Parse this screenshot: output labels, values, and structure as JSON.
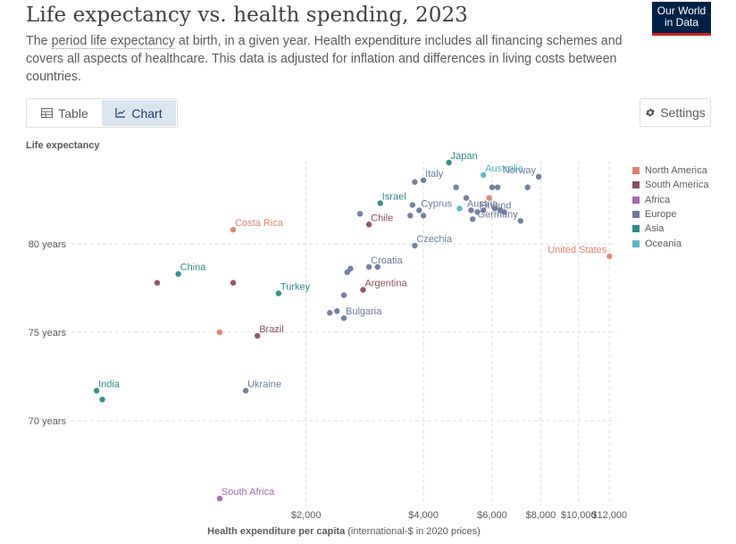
{
  "header": {
    "title": "Life expectancy vs. health spending, 2023",
    "subtitle_pre": "The ",
    "subtitle_link": "period life expectancy",
    "subtitle_post": " at birth, in a given year. Health expenditure includes all financing schemes and covers all aspects of healthcare. This data is adjusted for inflation and differences in living costs between countries.",
    "logo_line1": "Our World",
    "logo_line2": "in Data"
  },
  "toolbar": {
    "table_label": "Table",
    "chart_label": "Chart",
    "settings_label": "Settings"
  },
  "colors": {
    "accent": "#dbe5f0",
    "logo_bg": "#002147",
    "logo_rule": "#ce261e"
  },
  "chart_data": {
    "type": "scatter",
    "title": "Life expectancy vs. health spending, 2023",
    "ylabel": "Life expectancy",
    "xlabel_bold": "Health expenditure per capita",
    "xlabel_rest": " (international-$ in 2020 prices)",
    "x_scale": "log",
    "xlim": [
      500,
      12500
    ],
    "ylim": [
      65.2,
      84.7
    ],
    "x_ticks": [
      {
        "value": 2000,
        "label": "$2,000"
      },
      {
        "value": 4000,
        "label": "$4,000"
      },
      {
        "value": 6000,
        "label": "$6,000"
      },
      {
        "value": 8000,
        "label": "$8,000"
      },
      {
        "value": 10000,
        "label": "$10,000"
      },
      {
        "value": 12000,
        "label": "$12,000"
      }
    ],
    "y_ticks": [
      {
        "value": 70,
        "label": "70 years"
      },
      {
        "value": 75,
        "label": "75 years"
      },
      {
        "value": 80,
        "label": "80 years"
      }
    ],
    "grid": true,
    "legend_position": "right",
    "series": [
      {
        "name": "North America",
        "color": "#e0816e"
      },
      {
        "name": "South America",
        "color": "#8c4f5b"
      },
      {
        "name": "Africa",
        "color": "#a46ab0"
      },
      {
        "name": "Europe",
        "color": "#6b7a9c"
      },
      {
        "name": "Asia",
        "color": "#2d8a87"
      },
      {
        "name": "Oceania",
        "color": "#59b6c4"
      }
    ],
    "points": [
      {
        "country": "United States",
        "region": "North America",
        "x": 12000,
        "y": 79.3,
        "label": "United States"
      },
      {
        "country": "Costa Rica",
        "region": "North America",
        "x": 1300,
        "y": 80.8,
        "label": "Costa Rica"
      },
      {
        "country": "",
        "region": "North America",
        "x": 5900,
        "y": 82.6,
        "label": ""
      },
      {
        "country": "",
        "region": "North America",
        "x": 1200,
        "y": 75.0,
        "label": ""
      },
      {
        "country": "Chile",
        "region": "South America",
        "x": 2900,
        "y": 81.1,
        "label": "Chile"
      },
      {
        "country": "Argentina",
        "region": "South America",
        "x": 2800,
        "y": 77.4,
        "label": "Argentina"
      },
      {
        "country": "Brazil",
        "region": "South America",
        "x": 1500,
        "y": 74.8,
        "label": "Brazil"
      },
      {
        "country": "",
        "region": "South America",
        "x": 1300,
        "y": 77.8,
        "label": ""
      },
      {
        "country": "",
        "region": "South America",
        "x": 830,
        "y": 77.8,
        "label": ""
      },
      {
        "country": "South Africa",
        "region": "Africa",
        "x": 1200,
        "y": 65.6,
        "label": "South Africa"
      },
      {
        "country": "Italy",
        "region": "Europe",
        "x": 4000,
        "y": 83.6,
        "label": "Italy"
      },
      {
        "country": "",
        "region": "Europe",
        "x": 3800,
        "y": 83.5,
        "label": ""
      },
      {
        "country": "Cyprus",
        "region": "Europe",
        "x": 3900,
        "y": 81.9,
        "label": "Cyprus"
      },
      {
        "country": "",
        "region": "Europe",
        "x": 3750,
        "y": 82.2,
        "label": ""
      },
      {
        "country": "",
        "region": "Europe",
        "x": 3700,
        "y": 81.6,
        "label": ""
      },
      {
        "country": "",
        "region": "Europe",
        "x": 4000,
        "y": 81.6,
        "label": ""
      },
      {
        "country": "",
        "region": "Europe",
        "x": 2750,
        "y": 81.7,
        "label": ""
      },
      {
        "country": "Norway",
        "region": "Europe",
        "x": 7900,
        "y": 83.8,
        "label": "Norway"
      },
      {
        "country": "",
        "region": "Europe",
        "x": 7400,
        "y": 83.2,
        "label": ""
      },
      {
        "country": "Finland",
        "region": "Europe",
        "x": 5500,
        "y": 81.8,
        "label": "Finland"
      },
      {
        "country": "Austria",
        "region": "Europe",
        "x": 6300,
        "y": 81.9,
        "label": "Austria"
      },
      {
        "country": "Germany",
        "region": "Europe",
        "x": 7100,
        "y": 81.3,
        "label": "Germany"
      },
      {
        "country": "",
        "region": "Europe",
        "x": 6000,
        "y": 83.2,
        "label": ""
      },
      {
        "country": "",
        "region": "Europe",
        "x": 6200,
        "y": 83.2,
        "label": ""
      },
      {
        "country": "",
        "region": "Europe",
        "x": 4850,
        "y": 83.2,
        "label": ""
      },
      {
        "country": "",
        "region": "Europe",
        "x": 5150,
        "y": 82.6,
        "label": ""
      },
      {
        "country": "",
        "region": "Europe",
        "x": 5300,
        "y": 81.9,
        "label": ""
      },
      {
        "country": "",
        "region": "Europe",
        "x": 5350,
        "y": 81.4,
        "label": ""
      },
      {
        "country": "",
        "region": "Europe",
        "x": 5700,
        "y": 81.9,
        "label": ""
      },
      {
        "country": "",
        "region": "Europe",
        "x": 6100,
        "y": 82.0,
        "label": ""
      },
      {
        "country": "",
        "region": "Europe",
        "x": 6450,
        "y": 81.8,
        "label": ""
      },
      {
        "country": "Czechia",
        "region": "Europe",
        "x": 3800,
        "y": 79.9,
        "label": "Czechia"
      },
      {
        "country": "Croatia",
        "region": "Europe",
        "x": 2900,
        "y": 78.7,
        "label": "Croatia"
      },
      {
        "country": "",
        "region": "Europe",
        "x": 2600,
        "y": 78.6,
        "label": ""
      },
      {
        "country": "",
        "region": "Europe",
        "x": 2550,
        "y": 78.4,
        "label": ""
      },
      {
        "country": "",
        "region": "Europe",
        "x": 3050,
        "y": 78.7,
        "label": ""
      },
      {
        "country": "Bulgaria",
        "region": "Europe",
        "x": 2500,
        "y": 75.8,
        "label": "Bulgaria"
      },
      {
        "country": "",
        "region": "Europe",
        "x": 2300,
        "y": 76.1,
        "label": ""
      },
      {
        "country": "",
        "region": "Europe",
        "x": 2400,
        "y": 76.2,
        "label": ""
      },
      {
        "country": "",
        "region": "Europe",
        "x": 2500,
        "y": 77.1,
        "label": ""
      },
      {
        "country": "Ukraine",
        "region": "Europe",
        "x": 1400,
        "y": 71.7,
        "label": "Ukraine"
      },
      {
        "country": "Japan",
        "region": "Asia",
        "x": 4650,
        "y": 84.6,
        "label": "Japan"
      },
      {
        "country": "Israel",
        "region": "Asia",
        "x": 3100,
        "y": 82.3,
        "label": "Israel"
      },
      {
        "country": "China",
        "region": "Asia",
        "x": 940,
        "y": 78.3,
        "label": "China"
      },
      {
        "country": "Turkey",
        "region": "Asia",
        "x": 1700,
        "y": 77.2,
        "label": "Turkey"
      },
      {
        "country": "India",
        "region": "Asia",
        "x": 580,
        "y": 71.7,
        "label": "India"
      },
      {
        "country": "",
        "region": "Asia",
        "x": 600,
        "y": 71.2,
        "label": ""
      },
      {
        "country": "Australia",
        "region": "Oceania",
        "x": 5700,
        "y": 83.9,
        "label": "Australia"
      },
      {
        "country": "",
        "region": "Oceania",
        "x": 4950,
        "y": 82.0,
        "label": ""
      }
    ]
  }
}
